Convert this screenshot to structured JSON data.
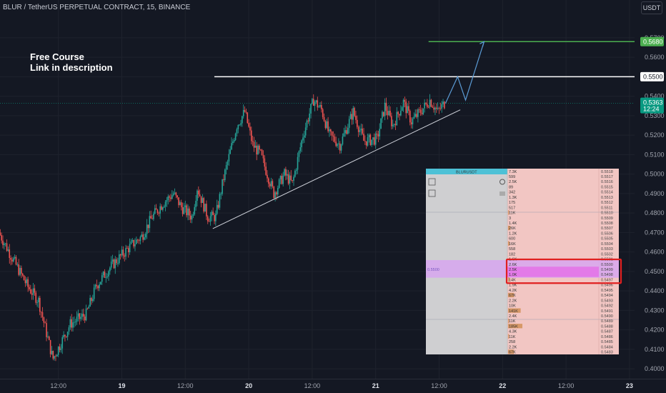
{
  "header": {
    "title": "BLUR / TetherUS PERPETUAL CONTRACT, 15, BINANCE",
    "currency_button": "USDT"
  },
  "promo": {
    "line1": "Free Course",
    "line2": "Link in description"
  },
  "colors": {
    "background": "#141823",
    "up": "#26a69a",
    "down": "#ef5350",
    "target_line": "#4caf50",
    "resistance_line": "#ffffff",
    "trendline": "#d1d4dc",
    "projection": "#5b9bd5",
    "current_price_tag": "#089981",
    "highlight_box": "#e02020"
  },
  "chart_data": {
    "type": "candlestick",
    "title": "BLUR / TetherUS PERPETUAL CONTRACT, 15, BINANCE",
    "ylim": [
      0.3955,
      0.5745
    ],
    "y_ticks": [
      "0.4000",
      "0.4100",
      "0.4200",
      "0.4300",
      "0.4400",
      "0.4500",
      "0.4600",
      "0.4700",
      "0.4800",
      "0.4900",
      "0.5000",
      "0.5100",
      "0.5200",
      "0.5300",
      "0.5400",
      "0.5500",
      "0.5600",
      "0.5700"
    ],
    "x_ticks": [
      {
        "label": "12:00",
        "t": -12,
        "bold": false
      },
      {
        "label": "19",
        "t": 0,
        "bold": true
      },
      {
        "label": "12:00",
        "t": 12,
        "bold": false
      },
      {
        "label": "20",
        "t": 24,
        "bold": true
      },
      {
        "label": "12:00",
        "t": 36,
        "bold": false
      },
      {
        "label": "21",
        "t": 48,
        "bold": true
      },
      {
        "label": "12:00",
        "t": 60,
        "bold": false
      },
      {
        "label": "22",
        "t": 72,
        "bold": true
      },
      {
        "label": "12:00",
        "t": 84,
        "bold": false
      },
      {
        "label": "23",
        "t": 96,
        "bold": true
      }
    ],
    "keypoints": [
      {
        "t": -23.0,
        "p": 0.47
      },
      {
        "t": -20.5,
        "p": 0.457
      },
      {
        "t": -17.5,
        "p": 0.442
      },
      {
        "t": -15.5,
        "p": 0.435
      },
      {
        "t": -12.8,
        "p": 0.405
      },
      {
        "t": -11.5,
        "p": 0.412
      },
      {
        "t": -9.5,
        "p": 0.423
      },
      {
        "t": -6.5,
        "p": 0.428
      },
      {
        "t": -4.5,
        "p": 0.443
      },
      {
        "t": -2.0,
        "p": 0.452
      },
      {
        "t": 1.5,
        "p": 0.462
      },
      {
        "t": 4.0,
        "p": 0.468
      },
      {
        "t": 6.0,
        "p": 0.478
      },
      {
        "t": 8.0,
        "p": 0.485
      },
      {
        "t": 10.0,
        "p": 0.49
      },
      {
        "t": 11.5,
        "p": 0.483
      },
      {
        "t": 13.5,
        "p": 0.478
      },
      {
        "t": 14.5,
        "p": 0.493
      },
      {
        "t": 16.5,
        "p": 0.478
      },
      {
        "t": 18.0,
        "p": 0.478
      },
      {
        "t": 19.5,
        "p": 0.498
      },
      {
        "t": 22.0,
        "p": 0.525
      },
      {
        "t": 23.5,
        "p": 0.532
      },
      {
        "t": 25.0,
        "p": 0.515
      },
      {
        "t": 26.5,
        "p": 0.51
      },
      {
        "t": 29.0,
        "p": 0.49
      },
      {
        "t": 31.0,
        "p": 0.5
      },
      {
        "t": 32.5,
        "p": 0.495
      },
      {
        "t": 34.5,
        "p": 0.52
      },
      {
        "t": 36.5,
        "p": 0.538
      },
      {
        "t": 38.0,
        "p": 0.533
      },
      {
        "t": 39.5,
        "p": 0.52
      },
      {
        "t": 41.5,
        "p": 0.515
      },
      {
        "t": 44.0,
        "p": 0.532
      },
      {
        "t": 46.0,
        "p": 0.517
      },
      {
        "t": 48.5,
        "p": 0.518
      },
      {
        "t": 50.0,
        "p": 0.535
      },
      {
        "t": 51.5,
        "p": 0.525
      },
      {
        "t": 53.5,
        "p": 0.537
      },
      {
        "t": 55.0,
        "p": 0.527
      },
      {
        "t": 57.0,
        "p": 0.533
      },
      {
        "t": 58.5,
        "p": 0.538
      },
      {
        "t": 60.0,
        "p": 0.532
      },
      {
        "t": 61.2,
        "p": 0.5363
      }
    ],
    "current_price": {
      "value": "0.5363",
      "countdown": "12:24"
    },
    "target_level": {
      "price": 0.568,
      "label": "0.5680",
      "t_start": 58.0
    },
    "resistance_level": {
      "price": 0.55,
      "label": "0.5500",
      "t_start": 17.5
    },
    "trendline": {
      "t1": 17.2,
      "p1": 0.472,
      "t2": 64.0,
      "p2": 0.533
    },
    "projection_path": [
      {
        "t": 61.2,
        "p": 0.5363
      },
      {
        "t": 63.5,
        "p": 0.55
      },
      {
        "t": 65.0,
        "p": 0.538
      },
      {
        "t": 68.5,
        "p": 0.568
      }
    ],
    "order_book": {
      "symbol": "BLURUSDT",
      "current_price_label": "0.5500",
      "size_labels": [
        "7.3K",
        "599",
        "2.5K",
        "89",
        "342",
        "1.3K",
        "175",
        "517",
        "11K",
        "3",
        "1.4K",
        "26K",
        "1.2K",
        "600",
        "16K",
        "558",
        "182",
        "1.6K",
        "2.6K",
        "2.5K",
        "1.0K",
        "14K",
        "1.9K",
        "4.2K",
        "67K",
        "2.2K",
        "10K",
        "141K",
        "2.4K",
        "11K",
        "185K",
        "4.3K",
        "11K",
        "258",
        "2.2K",
        "67K"
      ],
      "prices": [
        "0.5518",
        "0.5517",
        "0.5516",
        "0.5515",
        "0.5514",
        "0.5513",
        "0.5512",
        "0.5511",
        "0.5510",
        "0.5509",
        "0.5508",
        "0.5507",
        "0.5506",
        "0.5505",
        "0.5504",
        "0.5503",
        "0.5502",
        "0.5501",
        "0.5500",
        "0.5499",
        "0.5498",
        "0.5497",
        "0.5496",
        "0.5495",
        "0.5494",
        "0.5493",
        "0.5492",
        "0.5491",
        "0.5490",
        "0.5489",
        "0.5488",
        "0.5487",
        "0.5486",
        "0.5485",
        "0.5484",
        "0.5483"
      ]
    }
  }
}
